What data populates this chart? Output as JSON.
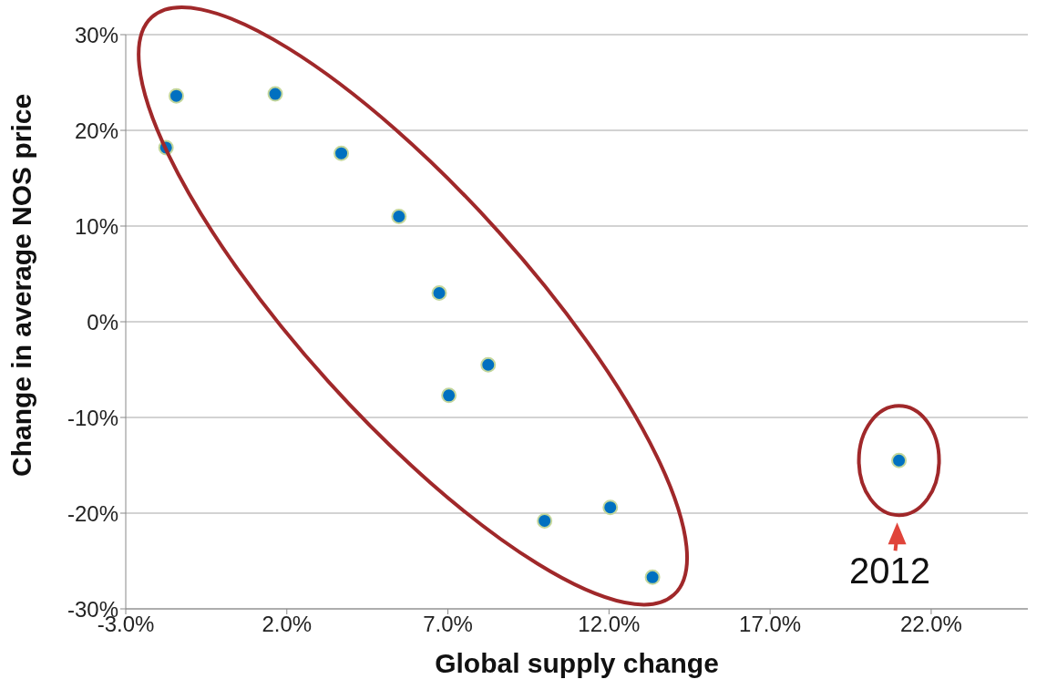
{
  "chart_data": {
    "type": "scatter",
    "xlabel": "Global supply change",
    "ylabel": "Change in average NOS price",
    "x": [
      -1.75,
      -1.43,
      1.64,
      3.69,
      5.48,
      6.73,
      8.25,
      7.03,
      10.0,
      12.04,
      13.35,
      21.0
    ],
    "values": [
      18.2,
      23.6,
      23.8,
      17.6,
      11.0,
      3.0,
      -4.5,
      -7.7,
      -20.8,
      -19.4,
      -26.7,
      -14.5
    ],
    "color": "#0070c0",
    "marker": "circle",
    "grid": "y",
    "legend": false,
    "xlim": [
      -3,
      25
    ],
    "xticks": [
      {
        "value": -3,
        "label": "-3.0%"
      },
      {
        "value": 2,
        "label": "2.0%"
      },
      {
        "value": 7,
        "label": "7.0%"
      },
      {
        "value": 12,
        "label": "12.0%"
      },
      {
        "value": 17,
        "label": "17.0%"
      },
      {
        "value": 22,
        "label": "22.0%"
      }
    ],
    "ylim": [
      -30,
      30
    ],
    "yticks": [
      {
        "value": -30,
        "label": "-30%"
      },
      {
        "value": -20,
        "label": "-20%"
      },
      {
        "value": -10,
        "label": "-10%"
      },
      {
        "value": 0,
        "label": "0%"
      },
      {
        "value": 10,
        "label": "10%"
      },
      {
        "value": 20,
        "label": "20%"
      },
      {
        "value": 30,
        "label": "30%"
      }
    ],
    "annotations": [
      {
        "text": "2012",
        "x": 21.0,
        "y": -14.5
      }
    ]
  }
}
